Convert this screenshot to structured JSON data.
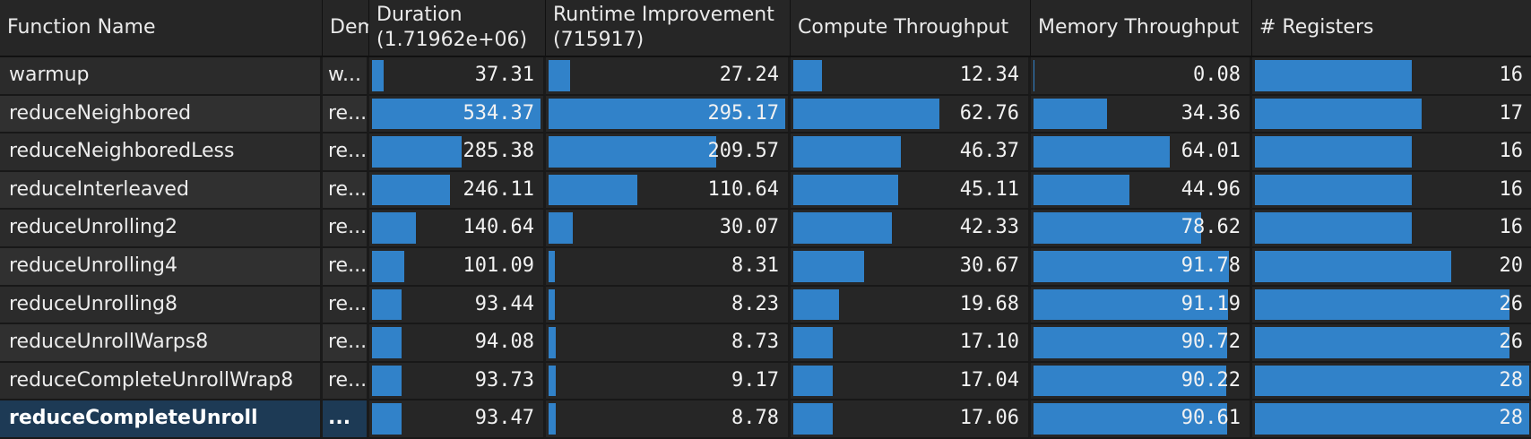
{
  "headers": {
    "function_name": "Function Name",
    "demangled": "Dem",
    "duration": "Duration",
    "duration_total": "(1.71962e+06)",
    "runtime": "Runtime Improvement",
    "runtime_total": "(715917)",
    "compute": "Compute Throughput",
    "memory": "Memory Throughput",
    "registers": "# Registers"
  },
  "maxima": {
    "duration": 534.37,
    "runtime": 295.17,
    "compute": 100,
    "memory": 100,
    "registers": 28
  },
  "rows": [
    {
      "name": "warmup",
      "dem": "w...",
      "duration": "37.31",
      "runtime": "27.24",
      "compute": "12.34",
      "memory": "0.08",
      "registers": "16",
      "selected": false
    },
    {
      "name": "reduceNeighbored",
      "dem": "re...",
      "duration": "534.37",
      "runtime": "295.17",
      "compute": "62.76",
      "memory": "34.36",
      "registers": "17",
      "selected": false
    },
    {
      "name": "reduceNeighboredLess",
      "dem": "re...",
      "duration": "285.38",
      "runtime": "209.57",
      "compute": "46.37",
      "memory": "64.01",
      "registers": "16",
      "selected": false
    },
    {
      "name": "reduceInterleaved",
      "dem": "re...",
      "duration": "246.11",
      "runtime": "110.64",
      "compute": "45.11",
      "memory": "44.96",
      "registers": "16",
      "selected": false
    },
    {
      "name": "reduceUnrolling2",
      "dem": "re...",
      "duration": "140.64",
      "runtime": "30.07",
      "compute": "42.33",
      "memory": "78.62",
      "registers": "16",
      "selected": false
    },
    {
      "name": "reduceUnrolling4",
      "dem": "re...",
      "duration": "101.09",
      "runtime": "8.31",
      "compute": "30.67",
      "memory": "91.78",
      "registers": "20",
      "selected": false
    },
    {
      "name": "reduceUnrolling8",
      "dem": "re...",
      "duration": "93.44",
      "runtime": "8.23",
      "compute": "19.68",
      "memory": "91.19",
      "registers": "26",
      "selected": false
    },
    {
      "name": "reduceUnrollWarps8",
      "dem": "re...",
      "duration": "94.08",
      "runtime": "8.73",
      "compute": "17.10",
      "memory": "90.72",
      "registers": "26",
      "selected": false
    },
    {
      "name": "reduceCompleteUnrollWrap8",
      "dem": "re...",
      "duration": "93.73",
      "runtime": "9.17",
      "compute": "17.04",
      "memory": "90.22",
      "registers": "28",
      "selected": false
    },
    {
      "name": "reduceCompleteUnroll",
      "dem": "...",
      "duration": "93.47",
      "runtime": "8.78",
      "compute": "17.06",
      "memory": "90.61",
      "registers": "28",
      "selected": true
    }
  ]
}
